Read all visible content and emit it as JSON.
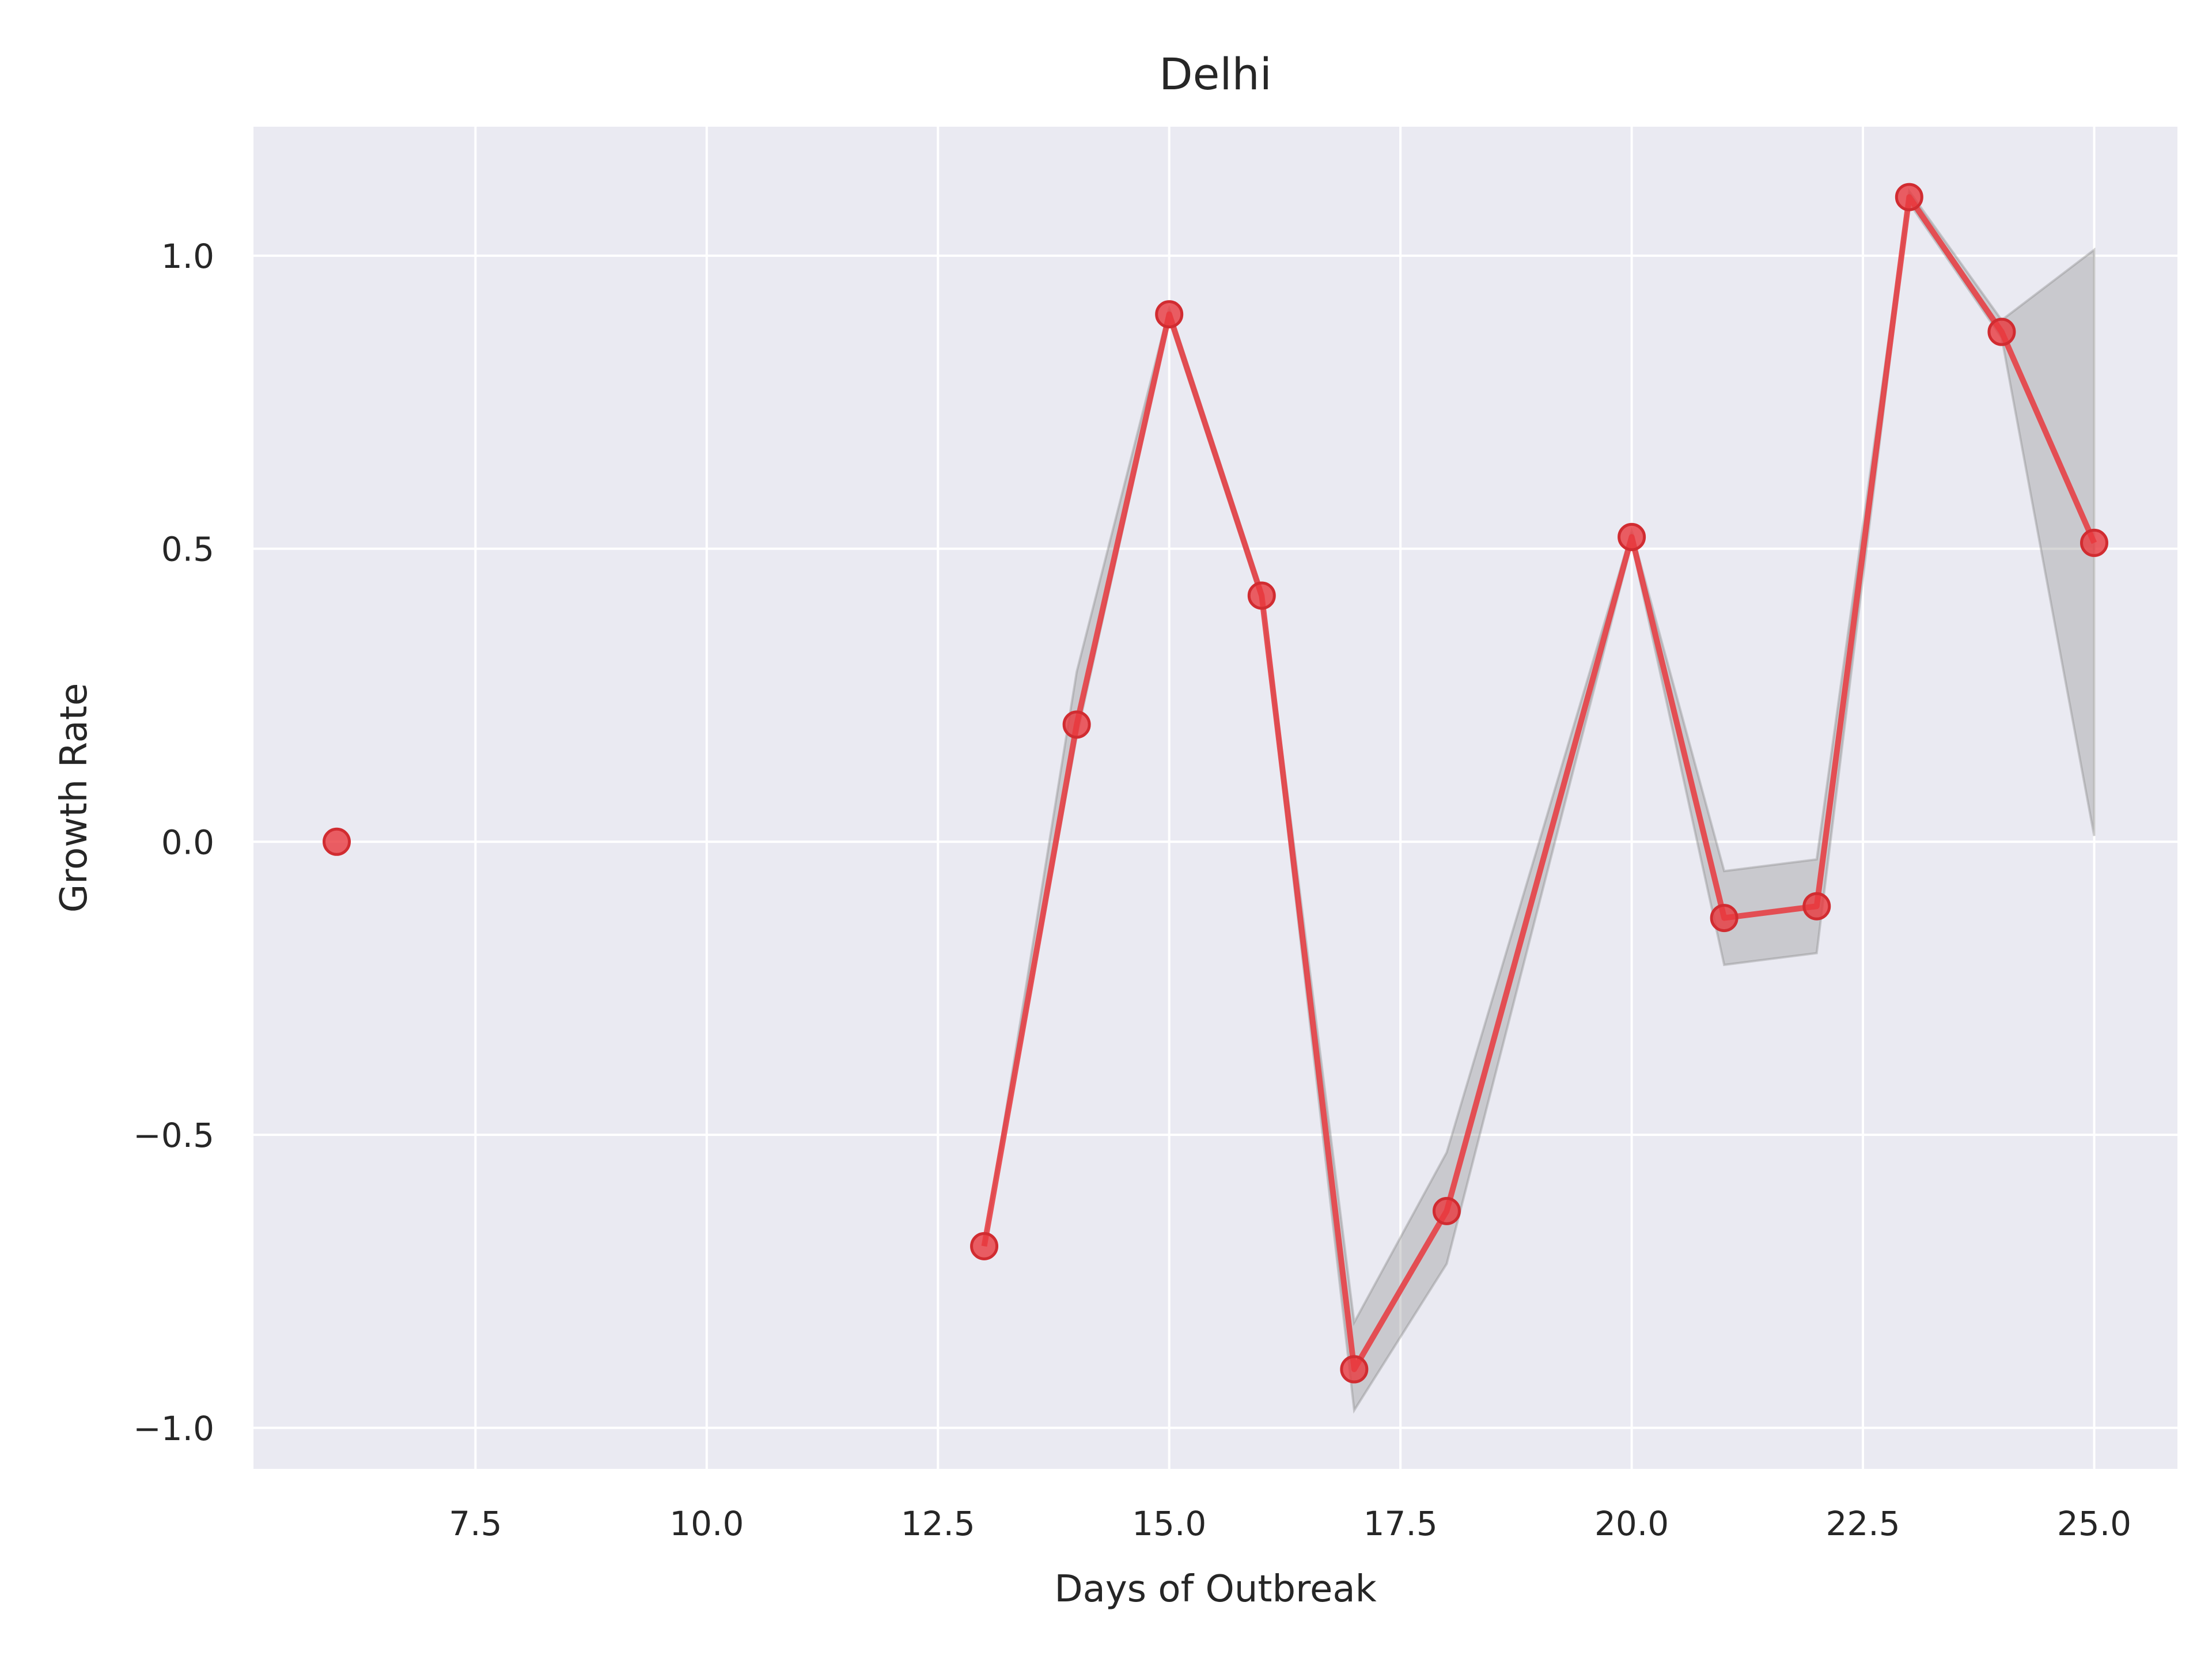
{
  "chart_data": {
    "type": "line",
    "title": "Delhi",
    "xlabel": "Days of Outbreak",
    "ylabel": "Growth Rate",
    "xlim": [
      5.1,
      25.9
    ],
    "ylim": [
      -1.07,
      1.22
    ],
    "x_ticks": [
      7.5,
      10.0,
      12.5,
      15.0,
      17.5,
      20.0,
      22.5,
      25.0
    ],
    "x_tick_labels": [
      "7.5",
      "10.0",
      "12.5",
      "15.0",
      "17.5",
      "20.0",
      "22.5",
      "25.0"
    ],
    "y_ticks": [
      -1.0,
      -0.5,
      0.0,
      0.5,
      1.0
    ],
    "y_tick_labels": [
      "−1.0",
      "−0.5",
      "0.0",
      "0.5",
      "1.0"
    ],
    "grid": true,
    "colors": {
      "background": "#eaeaf2",
      "grid": "#ffffff",
      "line": "#e8383d",
      "band": "#8c8c8c"
    },
    "isolated_points": [
      {
        "x": 6,
        "y": 0.0
      }
    ],
    "series": [
      {
        "x": [
          13,
          14,
          15,
          16,
          17,
          18,
          20,
          21,
          22,
          23,
          24,
          25
        ],
        "y": [
          -0.69,
          0.2,
          0.9,
          0.42,
          -0.9,
          -0.63,
          0.52,
          -0.13,
          -0.11,
          1.1,
          0.87,
          0.51
        ],
        "y_lower": [
          -0.69,
          0.18,
          0.89,
          0.41,
          -0.97,
          -0.72,
          0.51,
          -0.21,
          -0.19,
          1.09,
          0.86,
          0.01
        ],
        "y_upper": [
          -0.69,
          0.29,
          0.91,
          0.43,
          -0.82,
          -0.53,
          0.53,
          -0.05,
          -0.03,
          1.11,
          0.89,
          1.01
        ]
      }
    ]
  }
}
